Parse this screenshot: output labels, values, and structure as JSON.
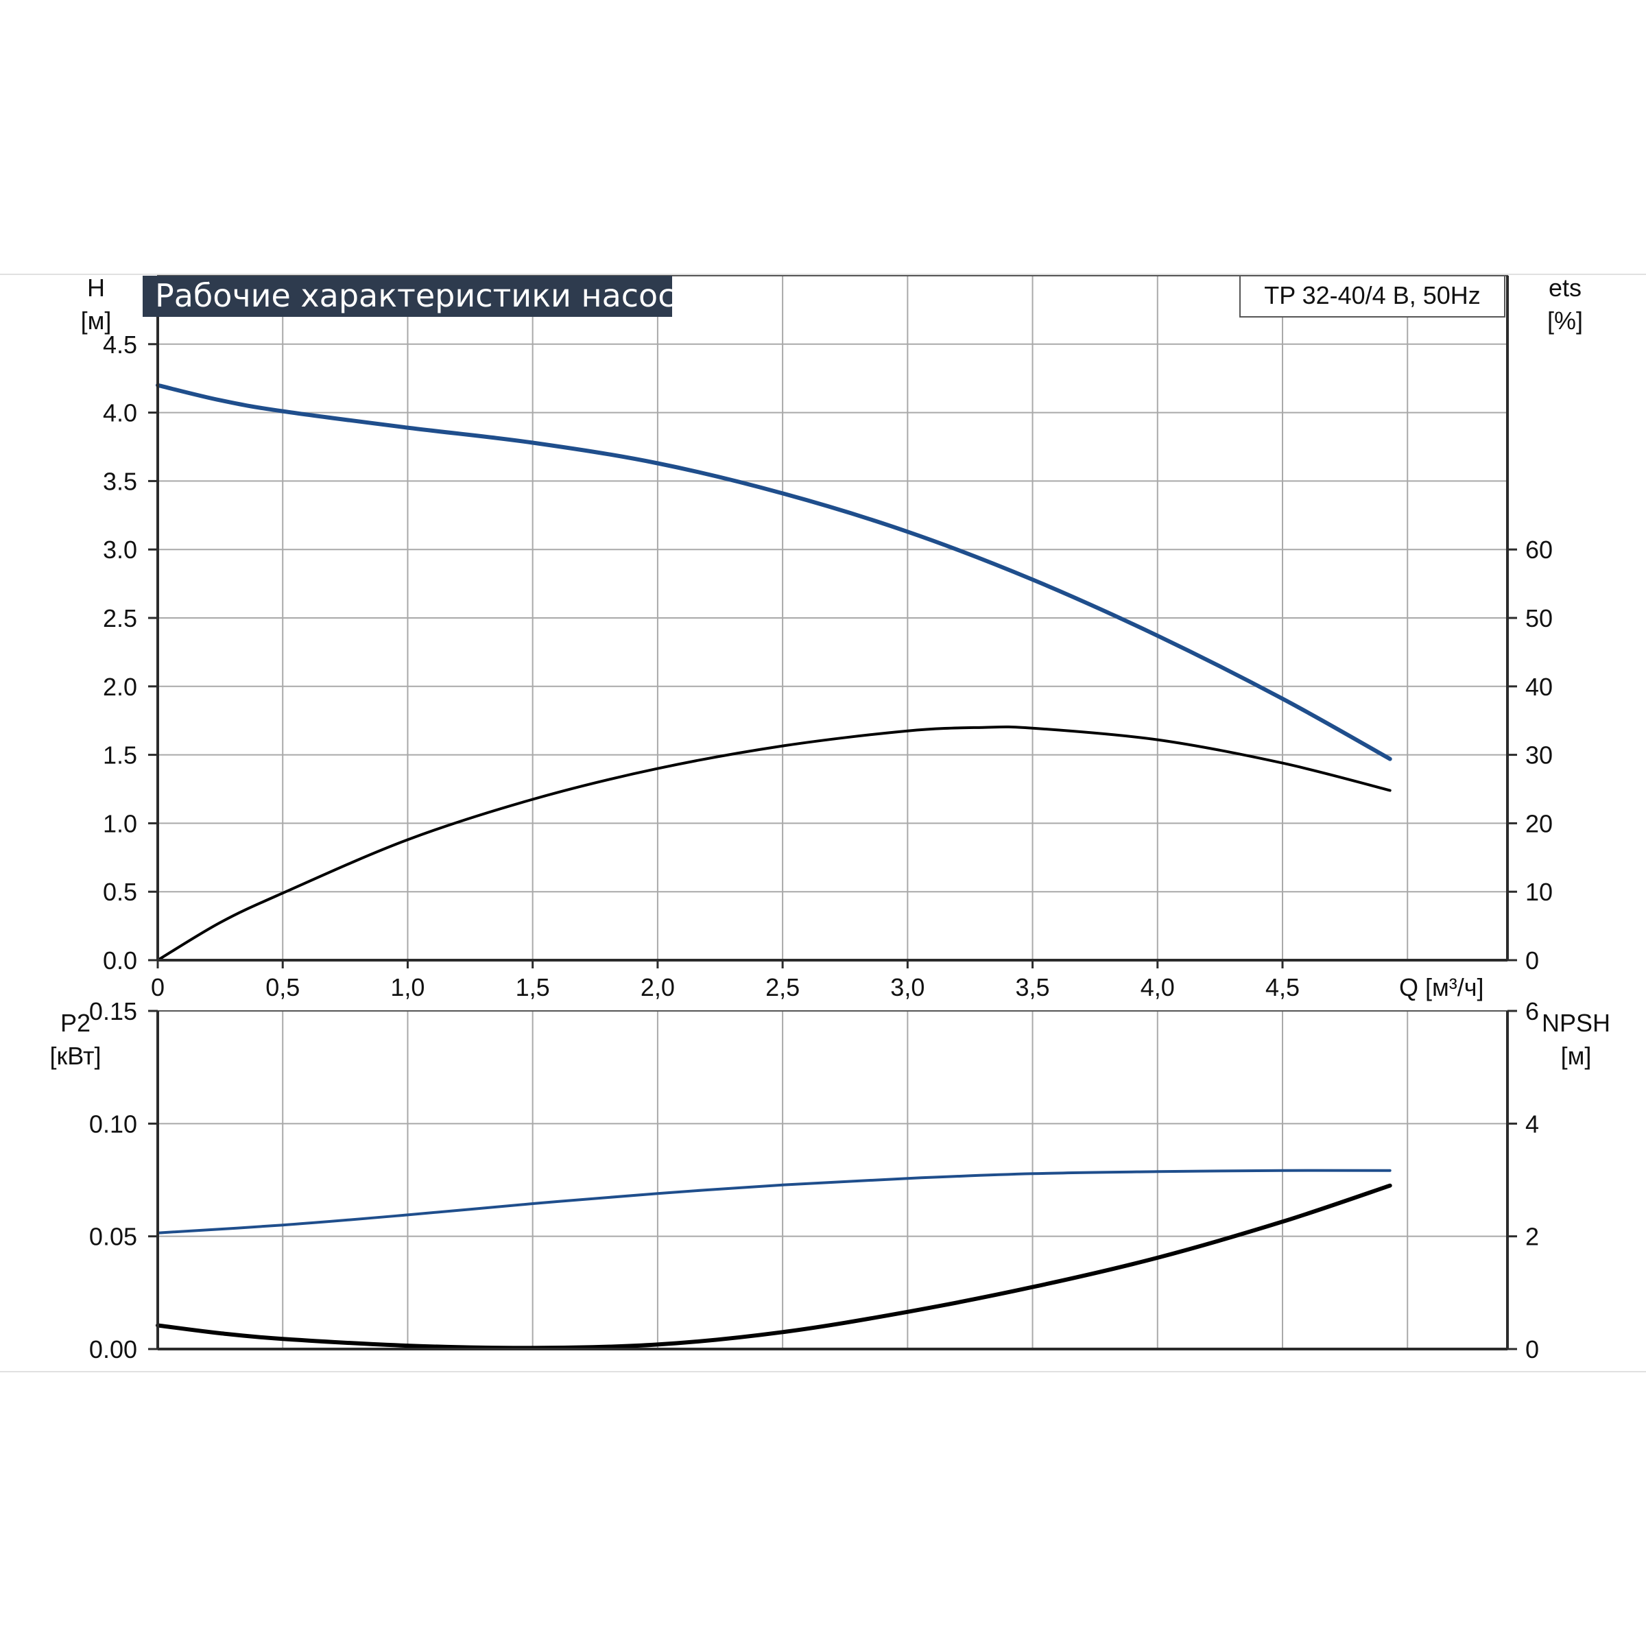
{
  "chart_data": [
    {
      "type": "line",
      "title": "Рабочие характеристики насоса",
      "model": "TP 32-40/4 B, 50Hz",
      "xlabel": "Q [м³/ч]",
      "x_ticks": [
        "0",
        "0,5",
        "1,0",
        "1,5",
        "2,0",
        "2,5",
        "3,0",
        "3,5",
        "4,0",
        "4,5"
      ],
      "xlim": [
        0,
        5.4
      ],
      "y_left": {
        "label": "H",
        "unit": "[м]",
        "lim": [
          0,
          5.0
        ],
        "ticks": [
          "0.0",
          "0.5",
          "1.0",
          "1.5",
          "2.0",
          "2.5",
          "3.0",
          "3.5",
          "4.0",
          "4.5"
        ]
      },
      "y_right": {
        "label": "ets",
        "unit": "[%]",
        "lim": [
          0,
          100
        ],
        "ticks": [
          "0",
          "10",
          "20",
          "30",
          "40",
          "50",
          "60"
        ]
      },
      "grid": true,
      "series": [
        {
          "axis": "left",
          "color": "#1f4e8c",
          "x": [
            0,
            0.25,
            0.5,
            1.0,
            1.5,
            2.0,
            2.5,
            3.0,
            3.5,
            4.0,
            4.5,
            4.93
          ],
          "y": [
            4.2,
            4.09,
            4.01,
            3.89,
            3.78,
            3.63,
            3.41,
            3.13,
            2.78,
            2.37,
            1.91,
            1.47
          ]
        },
        {
          "axis": "right",
          "color": "#000000",
          "x": [
            0,
            0.25,
            0.5,
            1.0,
            1.5,
            2.0,
            2.5,
            3.0,
            3.3,
            3.5,
            4.0,
            4.5,
            4.93
          ],
          "y": [
            0,
            5.5,
            9.8,
            17.6,
            23.5,
            28.0,
            31.3,
            33.5,
            34.0,
            33.9,
            32.2,
            28.8,
            24.8
          ]
        }
      ]
    },
    {
      "type": "line",
      "y_left": {
        "label": "P2",
        "unit": "[кВт]",
        "lim": [
          0,
          0.15
        ],
        "ticks": [
          "0.00",
          "0.05",
          "0.10",
          "0.15"
        ]
      },
      "y_right": {
        "label": "NPSH",
        "unit": "[м]",
        "lim": [
          0,
          6
        ],
        "ticks": [
          "0",
          "2",
          "4",
          "6"
        ]
      },
      "grid": true,
      "series": [
        {
          "axis": "left",
          "color": "#1f4e8c",
          "x": [
            0,
            0.5,
            1.0,
            1.5,
            2.0,
            2.5,
            3.0,
            3.5,
            4.0,
            4.5,
            4.93
          ],
          "y": [
            0.0515,
            0.055,
            0.0595,
            0.0645,
            0.069,
            0.0728,
            0.0757,
            0.0778,
            0.0787,
            0.0792,
            0.0792
          ]
        },
        {
          "axis": "right",
          "color": "#000000",
          "x": [
            0,
            0.25,
            0.5,
            1.0,
            1.5,
            2.0,
            2.5,
            3.0,
            3.5,
            4.0,
            4.5,
            4.93
          ],
          "y": [
            0.42,
            0.28,
            0.18,
            0.06,
            0.02,
            0.08,
            0.3,
            0.66,
            1.1,
            1.62,
            2.26,
            2.9
          ]
        }
      ]
    }
  ]
}
